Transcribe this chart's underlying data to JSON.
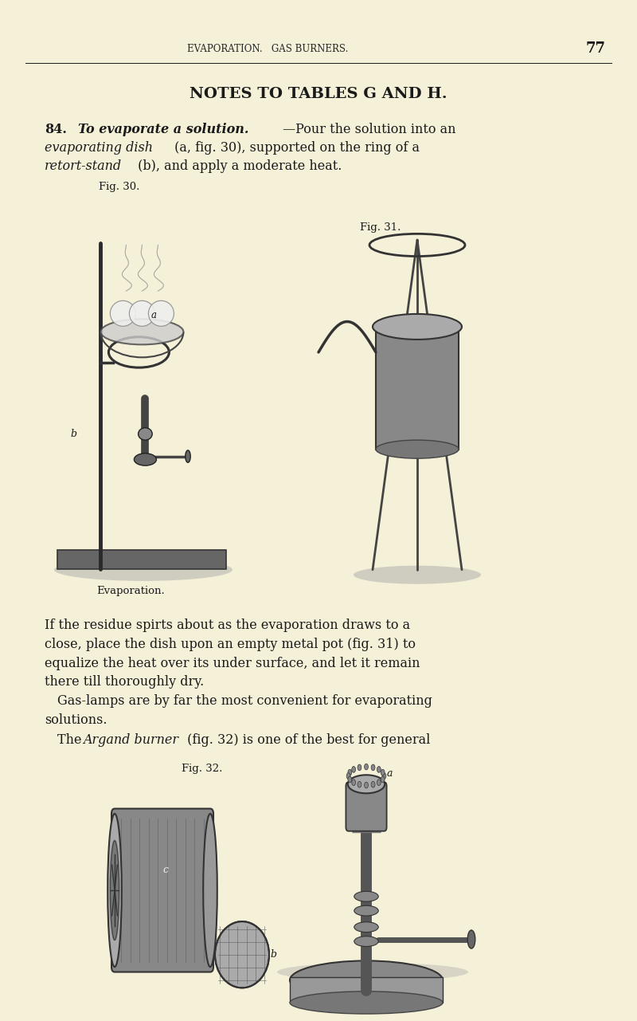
{
  "page_width": 8.0,
  "page_height": 12.81,
  "dpi": 100,
  "bg_color": "#f5f0d8",
  "header_text": "EVAPORATION.   GAS BURNERS.",
  "page_number": "77",
  "title": "NOTES TO TABLES G AND H.",
  "section_num": "84.",
  "para1_bold": "To evaporate a solution.",
  "para1_rest": "—Pour the solution into an",
  "para1_line2a": "evaporating dish",
  "para1_line2b": " (a, fig. 30), supported on the ring of a",
  "para1_line3a": "retort-stand",
  "para1_line3b": " (b), and apply a moderate heat.",
  "fig30_label": "Fig. 30.",
  "fig31_label": "Fig. 31.",
  "evaporation_caption": "Evaporation.",
  "p2_lines": [
    "If the residue spirts about as the evaporation draws to a",
    "close, place the dish upon an empty metal pot (fig. 31) to",
    "equalize the heat over its under surface, and let it remain",
    "there till thoroughly dry."
  ],
  "p3_line1": "Gas-lamps are by far the most convenient for evaporating",
  "p3_line2": "solutions.",
  "p4_pre": "The ",
  "p4_italic": "Argand burner",
  "p4_post": " (fig. 32) is one of the best for general",
  "fig32_label": "Fig. 32.",
  "text_color": "#1a1a1a",
  "header_color": "#2a2a2a"
}
